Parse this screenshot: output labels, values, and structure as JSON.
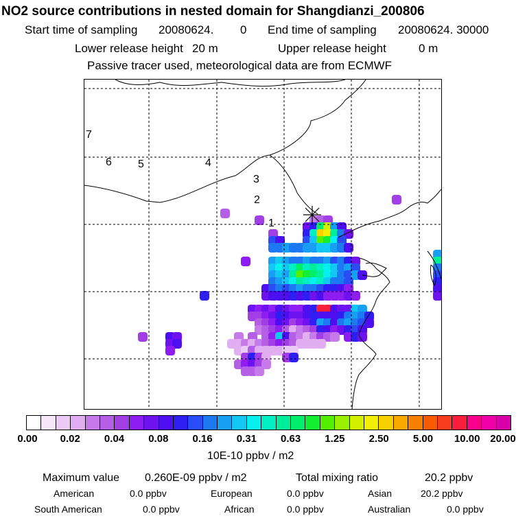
{
  "chart_data": {
    "type": "heatmap",
    "title": "NO2 source contributions in nested domain for Shangdianzi_200806",
    "start_label": "Start time of sampling",
    "start_value": "20080624.",
    "start_hour": "0",
    "end_label": "End time of sampling",
    "end_value": "20080624. 30000",
    "lower_label": "Lower release height",
    "lower_value": "20 m",
    "upper_label": "Upper release height",
    "upper_value": "0 m",
    "note": "Passive tracer used, meteorological data are from ECMWF",
    "day_labels": [
      "1",
      "2",
      "3",
      "4",
      "5",
      "6",
      "7"
    ],
    "colorbar": {
      "ticks": [
        "0.00",
        "0.02",
        "0.04",
        "0.08",
        "0.16",
        "0.31",
        "0.63",
        "1.25",
        "2.50",
        "5.00",
        "10.00",
        "20.00"
      ],
      "colors": [
        "#ffffff",
        "#f6e6fa",
        "#eccaf6",
        "#e1aef1",
        "#c77ae9",
        "#b55ee6",
        "#a23ee6",
        "#8d1df0",
        "#6f12f0",
        "#4d0ef0",
        "#2f1ef2",
        "#2a4cf4",
        "#1d79f2",
        "#17a0f3",
        "#12c8f2",
        "#06f0f0",
        "#00f0c4",
        "#00ee9a",
        "#00ee6a",
        "#12ef32",
        "#55f000",
        "#9af000",
        "#d2f000",
        "#f2f000",
        "#f8d200",
        "#f8a800",
        "#f88000",
        "#f85a00",
        "#f83c1e",
        "#f81e3c",
        "#f8008a",
        "#f000a8",
        "#d800a8",
        "#c0009c",
        "#a8008c",
        "#8c0078",
        "#6e0060"
      ],
      "unit": "10E-10 ppbv / m2"
    },
    "summary": {
      "max_label": "Maximum value",
      "max_value": "0.260E-09 ppbv / m2",
      "total_label": "Total mixing ratio",
      "total_value": "20.2 ppbv"
    },
    "regions": [
      {
        "name": "American",
        "value": "0.0 ppbv"
      },
      {
        "name": "European",
        "value": "0.0 ppbv"
      },
      {
        "name": "Asian",
        "value": "20.2 ppbv"
      },
      {
        "name": "South American",
        "value": "0.0 ppbv"
      },
      {
        "name": "African",
        "value": "0.0 ppbv"
      },
      {
        "name": "Australian",
        "value": "0.0 ppbv"
      }
    ],
    "cells_note": "approximate plume cells (grid col,row in 0-52 x 0-48 units, color level index 0-36)",
    "cells": [
      [
        33,
        20,
        4
      ],
      [
        34,
        20,
        5
      ],
      [
        35,
        20,
        6
      ],
      [
        32,
        21,
        8
      ],
      [
        33,
        21,
        10
      ],
      [
        34,
        21,
        18
      ],
      [
        35,
        21,
        22
      ],
      [
        36,
        21,
        13
      ],
      [
        37,
        21,
        9
      ],
      [
        27,
        22,
        6
      ],
      [
        32,
        22,
        10
      ],
      [
        33,
        22,
        16
      ],
      [
        34,
        22,
        24
      ],
      [
        35,
        22,
        23
      ],
      [
        36,
        22,
        17
      ],
      [
        37,
        22,
        12
      ],
      [
        38,
        22,
        8
      ],
      [
        27,
        23,
        11
      ],
      [
        28,
        23,
        9
      ],
      [
        32,
        23,
        11
      ],
      [
        33,
        23,
        14
      ],
      [
        34,
        23,
        20
      ],
      [
        35,
        23,
        19
      ],
      [
        36,
        23,
        15
      ],
      [
        37,
        23,
        11
      ],
      [
        27,
        24,
        12
      ],
      [
        28,
        24,
        12
      ],
      [
        29,
        24,
        13
      ],
      [
        30,
        24,
        12
      ],
      [
        31,
        24,
        12
      ],
      [
        32,
        24,
        13
      ],
      [
        33,
        24,
        13
      ],
      [
        34,
        24,
        14
      ],
      [
        35,
        24,
        14
      ],
      [
        36,
        24,
        13
      ],
      [
        37,
        24,
        12
      ],
      [
        38,
        24,
        9
      ],
      [
        23,
        26,
        7
      ],
      [
        27,
        26,
        13
      ],
      [
        28,
        26,
        14
      ],
      [
        29,
        26,
        13
      ],
      [
        30,
        26,
        12
      ],
      [
        31,
        26,
        12
      ],
      [
        32,
        26,
        13
      ],
      [
        33,
        26,
        12
      ],
      [
        34,
        26,
        12
      ],
      [
        35,
        26,
        13
      ],
      [
        36,
        26,
        11
      ],
      [
        37,
        26,
        12
      ],
      [
        38,
        26,
        10
      ],
      [
        39,
        26,
        8
      ],
      [
        27,
        27,
        14
      ],
      [
        28,
        27,
        15
      ],
      [
        29,
        27,
        14
      ],
      [
        30,
        27,
        16
      ],
      [
        31,
        27,
        18
      ],
      [
        32,
        27,
        16
      ],
      [
        33,
        27,
        17
      ],
      [
        34,
        27,
        16
      ],
      [
        35,
        27,
        15
      ],
      [
        36,
        27,
        14
      ],
      [
        37,
        27,
        12
      ],
      [
        38,
        27,
        13
      ],
      [
        39,
        27,
        11
      ],
      [
        27,
        28,
        13
      ],
      [
        28,
        28,
        14
      ],
      [
        29,
        28,
        13
      ],
      [
        30,
        28,
        17
      ],
      [
        31,
        28,
        20
      ],
      [
        32,
        28,
        19
      ],
      [
        33,
        28,
        18
      ],
      [
        34,
        28,
        17
      ],
      [
        35,
        28,
        15
      ],
      [
        36,
        28,
        14
      ],
      [
        37,
        28,
        12
      ],
      [
        38,
        28,
        11
      ],
      [
        39,
        28,
        13
      ],
      [
        40,
        28,
        9
      ],
      [
        27,
        29,
        12
      ],
      [
        28,
        29,
        13
      ],
      [
        29,
        29,
        14
      ],
      [
        30,
        29,
        15
      ],
      [
        31,
        29,
        17
      ],
      [
        32,
        29,
        16
      ],
      [
        33,
        29,
        15
      ],
      [
        34,
        29,
        16
      ],
      [
        35,
        29,
        14
      ],
      [
        36,
        29,
        12
      ],
      [
        37,
        29,
        12
      ],
      [
        38,
        29,
        11
      ],
      [
        26,
        30,
        9
      ],
      [
        27,
        30,
        11
      ],
      [
        28,
        30,
        12
      ],
      [
        29,
        30,
        11
      ],
      [
        30,
        30,
        12
      ],
      [
        31,
        30,
        13
      ],
      [
        32,
        30,
        12
      ],
      [
        33,
        30,
        12
      ],
      [
        34,
        30,
        11
      ],
      [
        35,
        30,
        10
      ],
      [
        36,
        30,
        10
      ],
      [
        37,
        30,
        9
      ],
      [
        38,
        30,
        7
      ],
      [
        17,
        31,
        10
      ],
      [
        26,
        31,
        8
      ],
      [
        27,
        31,
        9
      ],
      [
        28,
        31,
        9
      ],
      [
        29,
        31,
        9
      ],
      [
        30,
        31,
        10
      ],
      [
        31,
        31,
        9
      ],
      [
        32,
        31,
        10
      ],
      [
        33,
        31,
        8
      ],
      [
        34,
        31,
        9
      ],
      [
        35,
        31,
        7
      ],
      [
        36,
        31,
        7
      ],
      [
        37,
        31,
        7
      ],
      [
        38,
        31,
        8
      ],
      [
        39,
        31,
        7
      ],
      [
        24,
        33,
        8
      ],
      [
        25,
        33,
        7
      ],
      [
        26,
        33,
        8
      ],
      [
        27,
        33,
        7
      ],
      [
        28,
        33,
        9
      ],
      [
        29,
        33,
        8
      ],
      [
        30,
        33,
        7
      ],
      [
        31,
        33,
        7
      ],
      [
        32,
        33,
        9
      ],
      [
        33,
        33,
        10
      ],
      [
        34,
        33,
        29
      ],
      [
        35,
        33,
        29
      ],
      [
        36,
        33,
        9
      ],
      [
        37,
        33,
        8
      ],
      [
        38,
        33,
        8
      ],
      [
        39,
        33,
        14
      ],
      [
        40,
        33,
        13
      ],
      [
        24,
        34,
        6
      ],
      [
        25,
        34,
        6
      ],
      [
        26,
        34,
        7
      ],
      [
        27,
        34,
        8
      ],
      [
        28,
        34,
        10
      ],
      [
        29,
        34,
        9
      ],
      [
        30,
        34,
        8
      ],
      [
        31,
        34,
        8
      ],
      [
        32,
        34,
        9
      ],
      [
        33,
        34,
        10
      ],
      [
        34,
        34,
        9
      ],
      [
        35,
        34,
        9
      ],
      [
        36,
        34,
        9
      ],
      [
        37,
        34,
        10
      ],
      [
        38,
        34,
        12
      ],
      [
        39,
        34,
        13
      ],
      [
        40,
        34,
        12
      ],
      [
        41,
        34,
        10
      ],
      [
        25,
        35,
        5
      ],
      [
        26,
        35,
        6
      ],
      [
        27,
        35,
        7
      ],
      [
        28,
        35,
        9
      ],
      [
        29,
        35,
        8
      ],
      [
        30,
        35,
        6
      ],
      [
        31,
        35,
        7
      ],
      [
        32,
        35,
        8
      ],
      [
        33,
        35,
        10
      ],
      [
        34,
        35,
        13
      ],
      [
        35,
        35,
        12
      ],
      [
        36,
        35,
        9
      ],
      [
        37,
        35,
        12
      ],
      [
        38,
        35,
        13
      ],
      [
        39,
        35,
        12
      ],
      [
        40,
        35,
        11
      ],
      [
        41,
        35,
        9
      ],
      [
        25,
        36,
        4
      ],
      [
        26,
        36,
        5
      ],
      [
        27,
        36,
        6
      ],
      [
        28,
        36,
        7
      ],
      [
        29,
        36,
        5
      ],
      [
        30,
        36,
        3
      ],
      [
        31,
        36,
        4
      ],
      [
        32,
        36,
        5
      ],
      [
        33,
        36,
        6
      ],
      [
        34,
        36,
        10
      ],
      [
        35,
        36,
        9
      ],
      [
        36,
        36,
        7
      ],
      [
        37,
        36,
        8
      ],
      [
        38,
        36,
        10
      ],
      [
        39,
        36,
        11
      ],
      [
        40,
        36,
        9
      ],
      [
        8,
        37,
        6
      ],
      [
        12,
        37,
        9
      ],
      [
        13,
        37,
        8
      ],
      [
        22,
        37,
        4
      ],
      [
        24,
        37,
        5
      ],
      [
        26,
        37,
        5
      ],
      [
        27,
        37,
        7
      ],
      [
        28,
        37,
        14
      ],
      [
        29,
        37,
        9
      ],
      [
        30,
        37,
        5
      ],
      [
        31,
        37,
        4
      ],
      [
        32,
        37,
        3
      ],
      [
        33,
        37,
        4
      ],
      [
        34,
        37,
        6
      ],
      [
        35,
        37,
        5
      ],
      [
        36,
        37,
        4
      ],
      [
        38,
        37,
        7
      ],
      [
        39,
        37,
        10
      ],
      [
        40,
        37,
        8
      ],
      [
        12,
        38,
        8
      ],
      [
        13,
        38,
        9
      ],
      [
        21,
        38,
        3
      ],
      [
        22,
        38,
        3
      ],
      [
        23,
        38,
        4
      ],
      [
        24,
        38,
        3
      ],
      [
        25,
        38,
        4
      ],
      [
        26,
        38,
        5
      ],
      [
        27,
        38,
        6
      ],
      [
        28,
        38,
        7
      ],
      [
        29,
        38,
        6
      ],
      [
        30,
        38,
        5
      ],
      [
        31,
        38,
        3
      ],
      [
        32,
        38,
        3
      ],
      [
        33,
        38,
        3
      ],
      [
        34,
        38,
        3
      ],
      [
        12,
        39,
        7
      ],
      [
        22,
        39,
        3
      ],
      [
        23,
        39,
        2
      ],
      [
        24,
        39,
        5
      ],
      [
        25,
        39,
        3
      ],
      [
        26,
        39,
        3
      ],
      [
        27,
        39,
        3
      ],
      [
        28,
        39,
        3
      ],
      [
        29,
        39,
        2
      ],
      [
        30,
        39,
        2
      ],
      [
        23,
        40,
        6
      ],
      [
        24,
        40,
        10
      ],
      [
        25,
        40,
        6
      ],
      [
        26,
        40,
        3
      ],
      [
        29,
        40,
        6
      ],
      [
        30,
        40,
        10
      ],
      [
        22,
        41,
        5
      ],
      [
        23,
        41,
        7
      ],
      [
        24,
        41,
        8
      ],
      [
        25,
        41,
        6
      ],
      [
        26,
        41,
        4
      ],
      [
        23,
        42,
        5
      ],
      [
        24,
        42,
        5
      ],
      [
        25,
        42,
        4
      ],
      [
        45,
        17,
        6
      ],
      [
        20,
        19,
        5
      ],
      [
        25,
        20,
        6
      ],
      [
        51,
        25,
        13
      ],
      [
        51,
        26,
        17
      ],
      [
        51,
        27,
        12
      ],
      [
        51,
        28,
        11
      ],
      [
        51,
        29,
        10
      ],
      [
        51,
        30,
        9
      ],
      [
        51,
        31,
        8
      ]
    ]
  }
}
